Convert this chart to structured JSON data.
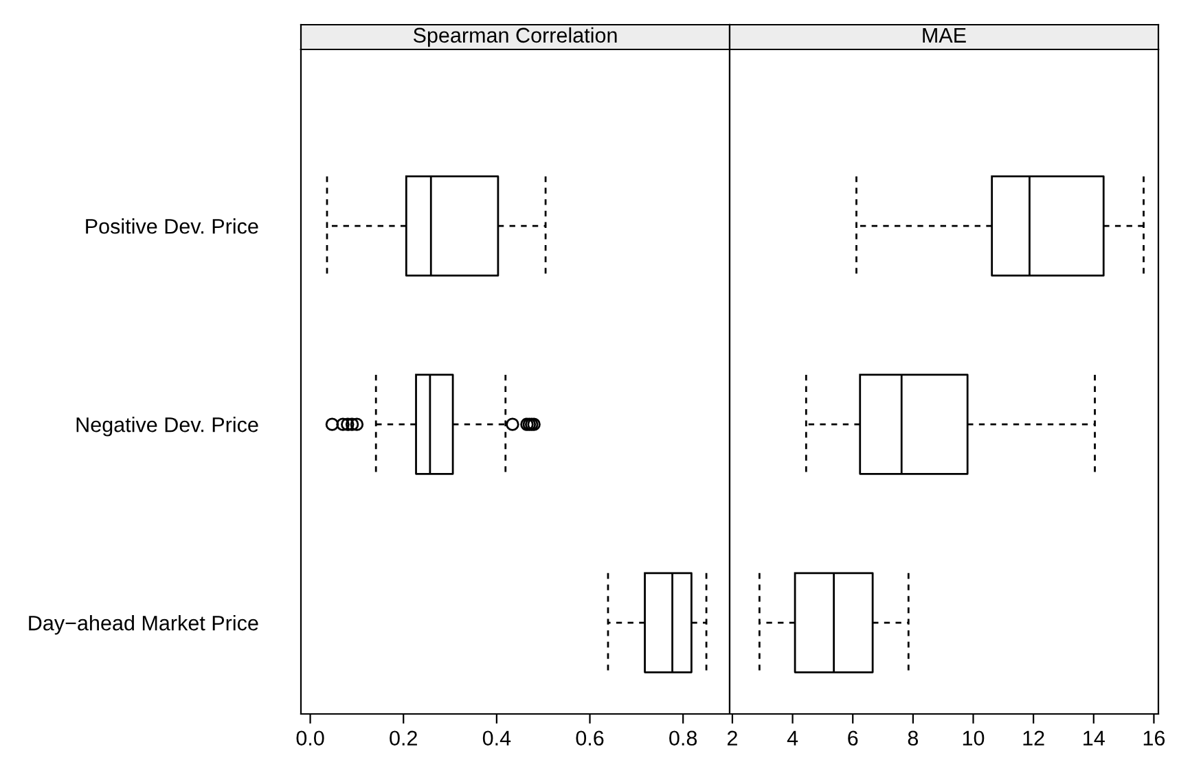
{
  "chart_data": [
    {
      "type": "box",
      "title": "Spearman Correlation",
      "orientation": "horizontal",
      "categories": [
        "Positive Dev. Price",
        "Negative Dev. Price",
        "Day−ahead Market Price"
      ],
      "boxes": [
        {
          "low": 0.036,
          "q1": 0.206,
          "median": 0.259,
          "q3": 0.403,
          "high": 0.505
        },
        {
          "low": 0.141,
          "q1": 0.227,
          "median": 0.257,
          "q3": 0.306,
          "high": 0.419,
          "outliers": [
            0.047,
            0.07,
            0.08,
            0.09,
            0.1,
            0.434,
            0.465,
            0.47,
            0.475,
            0.48
          ]
        },
        {
          "low": 0.639,
          "q1": 0.718,
          "median": 0.777,
          "q3": 0.818,
          "high": 0.85
        }
      ],
      "xlim": [
        -0.02,
        0.9
      ],
      "xticks": [
        {
          "value": 0,
          "label": "0.0"
        },
        0.2,
        0.4,
        0.6,
        0.8
      ]
    },
    {
      "type": "box",
      "title": "MAE",
      "orientation": "horizontal",
      "categories": [
        null,
        null,
        null
      ],
      "boxes": [
        {
          "low": 6.12,
          "q1": 10.62,
          "median": 11.87,
          "q3": 14.33,
          "high": 15.66
        },
        {
          "low": 4.45,
          "q1": 6.24,
          "median": 7.62,
          "q3": 9.81,
          "high": 14.04
        },
        {
          "low": 2.9,
          "q1": 4.08,
          "median": 5.37,
          "q3": 6.66,
          "high": 7.85
        }
      ],
      "xlim": [
        1.91,
        16.15
      ],
      "xticks": [
        2,
        4,
        6,
        8,
        10,
        12,
        14,
        16
      ],
      "tick_labels": "x"
    }
  ]
}
